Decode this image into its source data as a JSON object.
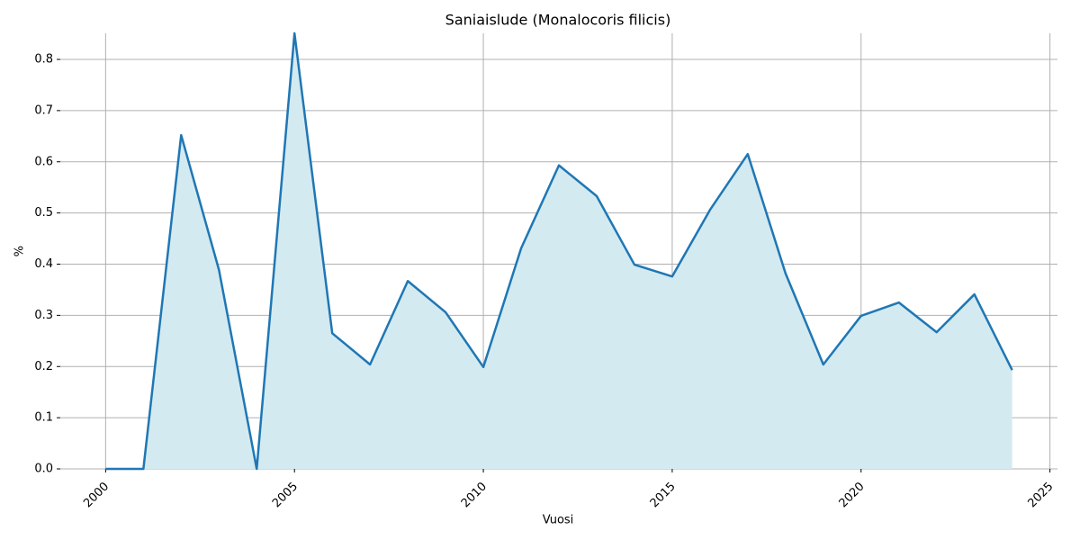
{
  "chart_data": {
    "type": "area-line",
    "title": "Saniaislude (Monalocoris filicis)",
    "x_label": "Vuosi",
    "y_label": "%",
    "x": [
      2000,
      2001,
      2002,
      2003,
      2004,
      2005,
      2006,
      2007,
      2008,
      2009,
      2010,
      2011,
      2012,
      2013,
      2014,
      2015,
      2016,
      2017,
      2018,
      2019,
      2020,
      2021,
      2022,
      2023,
      2024
    ],
    "values": [
      0,
      0,
      0.652,
      0.389,
      0,
      0.851,
      0.265,
      0.204,
      0.367,
      0.306,
      0.199,
      0.431,
      0.593,
      0.533,
      0.399,
      0.376,
      0.506,
      0.615,
      0.382,
      0.204,
      0.299,
      0.325,
      0.267,
      0.341,
      0.193
    ],
    "color": "#1f77b4",
    "fill_color": "#d4eaf1",
    "xlim": [
      1998.8,
      2025.2
    ],
    "xticks": [
      2000,
      2005,
      2010,
      2015,
      2020,
      2025
    ],
    "ylim": [
      0,
      0.851
    ],
    "yticks": [
      {
        "value": 0,
        "label": "0.0"
      },
      0.1,
      0.2,
      0.3,
      0.4,
      0.5,
      0.6,
      0.7,
      0.8
    ],
    "grid": true
  }
}
